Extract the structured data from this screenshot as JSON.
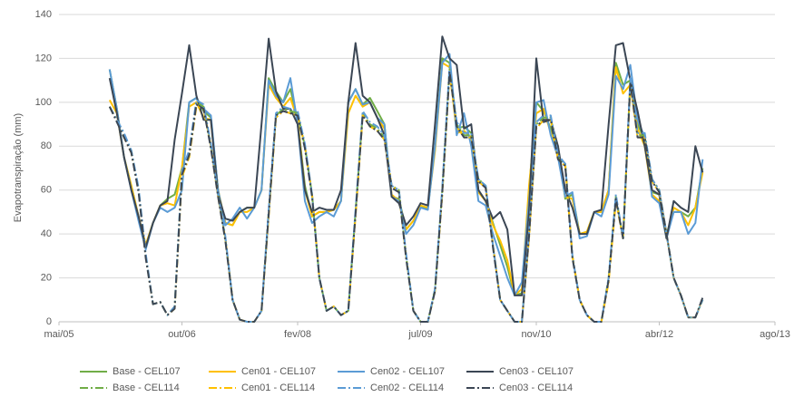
{
  "chart_data": {
    "type": "line",
    "y_label": "Evapotranspiração (mm)",
    "ylim": [
      0,
      140
    ],
    "yticks": [
      0,
      20,
      40,
      60,
      80,
      100,
      120,
      140
    ],
    "grid": true,
    "legend": "bottom",
    "xlim": [
      "2005-05",
      "2013-08"
    ],
    "xticks": [
      {
        "value": "2005-05",
        "label": "mai/05"
      },
      {
        "value": "2006-10",
        "label": "out/06"
      },
      {
        "value": "2008-02",
        "label": "fev/08"
      },
      {
        "value": "2009-07",
        "label": "jul/09"
      },
      {
        "value": "2010-11",
        "label": "nov/10"
      },
      {
        "value": "2012-04",
        "label": "abr/12"
      },
      {
        "value": "2013-08",
        "label": "ago/13"
      }
    ],
    "x": [
      "2005-12",
      "2006-01",
      "2006-02",
      "2006-03",
      "2006-04",
      "2006-05",
      "2006-06",
      "2006-07",
      "2006-08",
      "2006-09",
      "2006-10",
      "2006-11",
      "2006-12",
      "2007-01",
      "2007-02",
      "2007-03",
      "2007-04",
      "2007-05",
      "2007-06",
      "2007-07",
      "2007-08",
      "2007-09",
      "2007-10",
      "2007-11",
      "2007-12",
      "2008-01",
      "2008-02",
      "2008-03",
      "2008-04",
      "2008-05",
      "2008-06",
      "2008-07",
      "2008-08",
      "2008-09",
      "2008-10",
      "2008-11",
      "2008-12",
      "2009-01",
      "2009-02",
      "2009-03",
      "2009-04",
      "2009-05",
      "2009-06",
      "2009-07",
      "2009-08",
      "2009-09",
      "2009-10",
      "2009-11",
      "2009-12",
      "2010-01",
      "2010-02",
      "2010-03",
      "2010-04",
      "2010-05",
      "2010-06",
      "2010-07",
      "2010-08",
      "2010-09",
      "2010-10",
      "2010-11",
      "2010-12",
      "2011-01",
      "2011-02",
      "2011-03",
      "2011-04",
      "2011-05",
      "2011-06",
      "2011-07",
      "2011-08",
      "2011-09",
      "2011-10",
      "2011-11",
      "2011-12",
      "2012-01",
      "2012-02",
      "2012-03",
      "2012-04",
      "2012-05",
      "2012-06",
      "2012-07",
      "2012-08",
      "2012-09",
      "2012-10"
    ],
    "series": [
      {
        "name": "Base - CEL107",
        "color": "#70ad47",
        "style": "solid",
        "values": [
          115,
          97,
          75,
          62,
          48,
          35,
          45,
          53,
          56,
          58,
          70,
          100,
          102,
          96,
          93,
          60,
          45,
          44,
          50,
          52,
          52,
          60,
          111,
          105,
          100,
          106,
          92,
          62,
          48,
          50,
          50,
          51,
          55,
          100,
          106,
          99,
          102,
          96,
          90,
          57,
          56,
          42,
          46,
          52,
          52,
          80,
          120,
          118,
          88,
          89,
          86,
          60,
          55,
          45,
          35,
          25,
          12,
          13,
          60,
          100,
          96,
          88,
          80,
          56,
          58,
          40,
          41,
          50,
          50,
          60,
          118,
          108,
          110,
          90,
          83,
          59,
          58,
          40,
          50,
          50,
          48,
          52,
          70
        ]
      },
      {
        "name": "Cen01 - CEL107",
        "color": "#ffc000",
        "style": "solid",
        "values": [
          101,
          95,
          75,
          62,
          48,
          35,
          45,
          53,
          54,
          53,
          70,
          98,
          100,
          93,
          92,
          60,
          45,
          44,
          50,
          50,
          52,
          60,
          108,
          102,
          98,
          102,
          92,
          60,
          48,
          50,
          50,
          51,
          55,
          95,
          103,
          98,
          100,
          93,
          88,
          58,
          55,
          42,
          46,
          53,
          52,
          78,
          118,
          116,
          86,
          87,
          84,
          59,
          55,
          44,
          37,
          28,
          12,
          15,
          62,
          95,
          97,
          86,
          76,
          57,
          56,
          40,
          41,
          50,
          50,
          60,
          116,
          104,
          108,
          88,
          80,
          58,
          55,
          38,
          52,
          50,
          44,
          52,
          68
        ]
      },
      {
        "name": "Cen02 - CEL107",
        "color": "#5b9bd5",
        "style": "solid",
        "values": [
          115,
          97,
          75,
          60,
          46,
          33,
          45,
          52,
          50,
          52,
          60,
          100,
          102,
          97,
          94,
          60,
          44,
          47,
          52,
          47,
          52,
          60,
          110,
          103,
          100,
          111,
          90,
          55,
          45,
          48,
          50,
          48,
          55,
          100,
          106,
          99,
          100,
          93,
          90,
          57,
          55,
          40,
          44,
          52,
          51,
          80,
          118,
          122,
          85,
          95,
          80,
          55,
          53,
          40,
          30,
          20,
          12,
          18,
          55,
          100,
          101,
          85,
          75,
          57,
          59,
          38,
          39,
          50,
          48,
          58,
          112,
          106,
          117,
          92,
          84,
          57,
          54,
          38,
          50,
          50,
          40,
          45,
          74
        ]
      },
      {
        "name": "Cen03 - CEL107",
        "color": "#3b4654",
        "style": "solid",
        "values": [
          111,
          95,
          75,
          60,
          48,
          34,
          45,
          53,
          55,
          83,
          104,
          126,
          103,
          92,
          92,
          58,
          47,
          46,
          50,
          52,
          52,
          90,
          129,
          105,
          97,
          97,
          90,
          60,
          50,
          52,
          51,
          51,
          60,
          100,
          127,
          103,
          100,
          93,
          85,
          57,
          54,
          44,
          48,
          54,
          53,
          90,
          130,
          120,
          117,
          88,
          90,
          60,
          55,
          47,
          50,
          42,
          12,
          12,
          50,
          120,
          91,
          92,
          80,
          60,
          52,
          40,
          40,
          50,
          51,
          90,
          126,
          127,
          110,
          96,
          80,
          60,
          58,
          38,
          55,
          52,
          50,
          80,
          68
        ]
      },
      {
        "name": "Base - CEL114",
        "color": "#70ad47",
        "style": "dashdot",
        "values": [
          98,
          92,
          85,
          78,
          60,
          30,
          8,
          9,
          3,
          7,
          68,
          77,
          100,
          98,
          80,
          58,
          38,
          10,
          1,
          0,
          0,
          5,
          50,
          94,
          97,
          96,
          95,
          80,
          58,
          20,
          5,
          7,
          3,
          5,
          50,
          95,
          90,
          88,
          84,
          62,
          60,
          30,
          5,
          0,
          0,
          15,
          60,
          115,
          90,
          85,
          85,
          65,
          62,
          35,
          10,
          5,
          0,
          0,
          40,
          90,
          93,
          93,
          75,
          72,
          30,
          10,
          3,
          0,
          0,
          20,
          57,
          38,
          110,
          85,
          85,
          65,
          60,
          40,
          20,
          12,
          2,
          2,
          10
        ]
      },
      {
        "name": "Cen01 - CEL114",
        "color": "#ffc000",
        "style": "dashdot",
        "values": [
          98,
          92,
          84,
          77,
          60,
          30,
          8,
          9,
          3,
          6,
          66,
          75,
          98,
          97,
          80,
          57,
          38,
          10,
          1,
          0,
          0,
          5,
          48,
          93,
          96,
          95,
          94,
          80,
          58,
          20,
          5,
          7,
          3,
          5,
          48,
          94,
          89,
          87,
          83,
          62,
          59,
          30,
          5,
          0,
          0,
          14,
          58,
          113,
          89,
          84,
          84,
          64,
          61,
          35,
          10,
          5,
          0,
          0,
          38,
          88,
          92,
          92,
          74,
          71,
          30,
          10,
          3,
          0,
          0,
          18,
          55,
          38,
          108,
          84,
          84,
          64,
          59,
          40,
          20,
          12,
          2,
          2,
          10
        ]
      },
      {
        "name": "Cen02 - CEL114",
        "color": "#5b9bd5",
        "style": "dashdot",
        "values": [
          98,
          92,
          86,
          78,
          61,
          31,
          8,
          9,
          3,
          7,
          69,
          78,
          101,
          99,
          81,
          58,
          39,
          10,
          1,
          0,
          0,
          5,
          51,
          95,
          98,
          97,
          96,
          81,
          58,
          20,
          5,
          7,
          3,
          5,
          51,
          96,
          91,
          89,
          85,
          62,
          60,
          31,
          5,
          0,
          0,
          15,
          61,
          116,
          91,
          86,
          86,
          65,
          62,
          35,
          10,
          5,
          0,
          0,
          41,
          91,
          94,
          94,
          76,
          72,
          30,
          10,
          3,
          0,
          0,
          20,
          58,
          38,
          111,
          86,
          86,
          65,
          60,
          40,
          20,
          12,
          2,
          2,
          10
        ]
      },
      {
        "name": "Cen03 - CEL114",
        "color": "#3b4654",
        "style": "dashdot",
        "values": [
          98,
          91,
          84,
          77,
          59,
          29,
          8,
          9,
          3,
          6,
          67,
          76,
          99,
          97,
          79,
          57,
          37,
          10,
          1,
          0,
          0,
          5,
          49,
          94,
          96,
          95,
          94,
          79,
          57,
          20,
          5,
          7,
          3,
          5,
          49,
          94,
          89,
          87,
          83,
          61,
          59,
          29,
          5,
          0,
          0,
          14,
          59,
          114,
          89,
          84,
          84,
          64,
          61,
          34,
          10,
          5,
          0,
          0,
          39,
          89,
          92,
          92,
          74,
          71,
          29,
          10,
          3,
          0,
          0,
          19,
          56,
          38,
          109,
          84,
          84,
          64,
          59,
          40,
          20,
          12,
          2,
          2,
          11
        ]
      }
    ]
  }
}
